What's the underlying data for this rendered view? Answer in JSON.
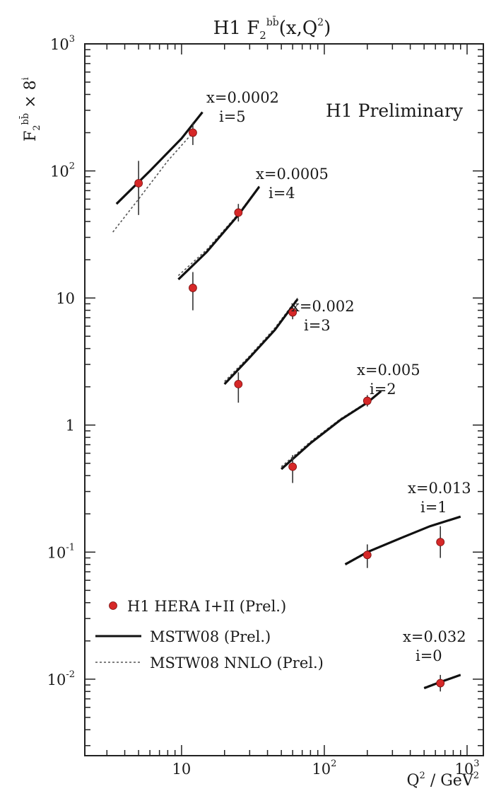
{
  "chart_data": {
    "type": "scatter",
    "title_main": "H1 F",
    "title_sub": "2",
    "title_sup": "bb̄",
    "title_tail": "(x,Q",
    "title_tail_sup": "2",
    "title_end": ")",
    "ylabel_main": "F",
    "ylabel_sub": "2",
    "ylabel_sup": "bb̄",
    "ylabel_tail": " × 8",
    "ylabel_tail_sup": "i",
    "xlabel_main": "Q",
    "xlabel_sup": "2",
    "xlabel_tail": " / GeV",
    "xlabel_tail_sup": "2",
    "xscale": "log",
    "yscale": "log",
    "xlim": [
      2.1,
      1300
    ],
    "ylim": [
      0.0025,
      1000
    ],
    "grid": false,
    "legend_position": "bottom-left",
    "preliminary_label": "H1 Preliminary",
    "colors": {
      "data": "#d62828",
      "axes": "#222222",
      "curve": "#111111"
    },
    "y_ticks": [
      {
        "value": 1000,
        "base": "10",
        "exp": "3"
      },
      {
        "value": 100,
        "base": "10",
        "exp": "2"
      },
      {
        "value": 10,
        "base": "10",
        "exp": ""
      },
      {
        "value": 1,
        "base": "1",
        "exp": ""
      },
      {
        "value": 0.1,
        "base": "10",
        "exp": "-1"
      },
      {
        "value": 0.01,
        "base": "10",
        "exp": "-2"
      }
    ],
    "x_ticks": [
      {
        "value": 10,
        "base": "10",
        "exp": ""
      },
      {
        "value": 100,
        "base": "10",
        "exp": "2"
      },
      {
        "value": 1000,
        "base": "10",
        "exp": "3"
      }
    ],
    "legend": [
      {
        "label": "H1 HERA I+II (Prel.)",
        "style": "marker"
      },
      {
        "label": "MSTW08 (Prel.)",
        "style": "solid"
      },
      {
        "label": "MSTW08 NNLO (Prel.)",
        "style": "dotted"
      }
    ],
    "series": [
      {
        "x_label": "x=0.0002",
        "i_label": "i=5",
        "points": [
          {
            "q2": 5,
            "y": 80,
            "err_lo": 45,
            "err_hi": 120
          },
          {
            "q2": 12,
            "y": 200,
            "err_lo": 160,
            "err_hi": 240
          }
        ],
        "curve_solid": [
          [
            3.5,
            55
          ],
          [
            6,
            100
          ],
          [
            10,
            180
          ],
          [
            14,
            290
          ]
        ],
        "curve_dotted": [
          [
            3.3,
            33
          ],
          [
            5,
            60
          ],
          [
            8,
            120
          ],
          [
            12,
            200
          ]
        ]
      },
      {
        "x_label": "x=0.0005",
        "i_label": "i=4",
        "points": [
          {
            "q2": 12,
            "y": 12,
            "err_lo": 8,
            "err_hi": 16
          },
          {
            "q2": 25,
            "y": 47,
            "err_lo": 40,
            "err_hi": 55
          }
        ],
        "curve_solid": [
          [
            9.5,
            14
          ],
          [
            15,
            23
          ],
          [
            25,
            45
          ],
          [
            35,
            75
          ]
        ],
        "curve_dotted": [
          [
            9.5,
            15
          ],
          [
            15,
            24
          ],
          [
            25,
            46
          ],
          [
            35,
            76
          ]
        ]
      },
      {
        "x_label": "x=0.002",
        "i_label": "i=3",
        "points": [
          {
            "q2": 25,
            "y": 2.1,
            "err_lo": 1.5,
            "err_hi": 2.6
          },
          {
            "q2": 60,
            "y": 7.7,
            "err_lo": 6.8,
            "err_hi": 8.6
          }
        ],
        "curve_solid": [
          [
            20,
            2.1
          ],
          [
            30,
            3.4
          ],
          [
            45,
            5.6
          ],
          [
            65,
            9.8
          ]
        ],
        "curve_dotted": [
          [
            20,
            2.2
          ],
          [
            30,
            3.5
          ],
          [
            45,
            5.8
          ],
          [
            65,
            10
          ]
        ]
      },
      {
        "x_label": "x=0.005",
        "i_label": "i=2",
        "points": [
          {
            "q2": 60,
            "y": 0.47,
            "err_lo": 0.35,
            "err_hi": 0.58
          },
          {
            "q2": 200,
            "y": 1.55,
            "err_lo": 1.4,
            "err_hi": 1.72
          }
        ],
        "curve_solid": [
          [
            50,
            0.45
          ],
          [
            80,
            0.72
          ],
          [
            130,
            1.1
          ],
          [
            200,
            1.5
          ],
          [
            250,
            1.85
          ]
        ],
        "curve_dotted": [
          [
            50,
            0.47
          ],
          [
            80,
            0.74
          ],
          [
            130,
            1.12
          ],
          [
            200,
            1.52
          ],
          [
            250,
            1.87
          ]
        ]
      },
      {
        "x_label": "x=0.013",
        "i_label": "i=1",
        "points": [
          {
            "q2": 200,
            "y": 0.095,
            "err_lo": 0.075,
            "err_hi": 0.115
          },
          {
            "q2": 650,
            "y": 0.12,
            "err_lo": 0.09,
            "err_hi": 0.16
          }
        ],
        "curve_solid": [
          [
            140,
            0.08
          ],
          [
            200,
            0.1
          ],
          [
            350,
            0.13
          ],
          [
            550,
            0.16
          ],
          [
            900,
            0.19
          ]
        ],
        "curve_dotted": [
          [
            140,
            0.081
          ],
          [
            200,
            0.101
          ],
          [
            350,
            0.131
          ],
          [
            550,
            0.161
          ],
          [
            900,
            0.191
          ]
        ]
      },
      {
        "x_label": "x=0.032",
        "i_label": "i=0",
        "points": [
          {
            "q2": 650,
            "y": 0.0093,
            "err_lo": 0.008,
            "err_hi": 0.0108
          }
        ],
        "curve_solid": [
          [
            500,
            0.0085
          ],
          [
            650,
            0.0095
          ],
          [
            900,
            0.0108
          ]
        ],
        "curve_dotted": [
          [
            500,
            0.0086
          ],
          [
            650,
            0.0096
          ],
          [
            900,
            0.0109
          ]
        ]
      }
    ]
  }
}
